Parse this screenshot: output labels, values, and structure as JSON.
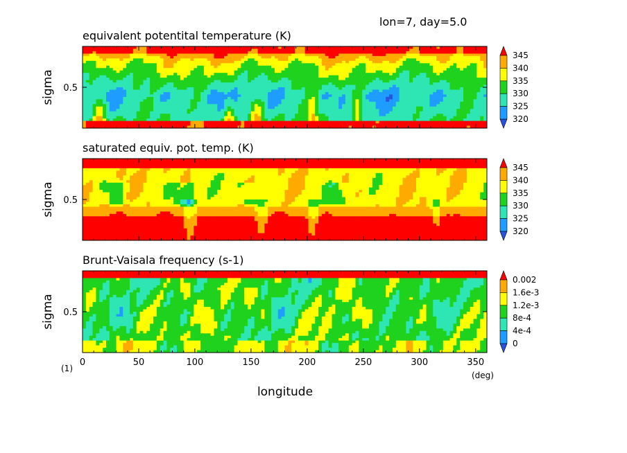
{
  "header": {
    "info": "lon=7, day=5.0"
  },
  "figure_note": "(1)",
  "x_axis": {
    "label": "longitude",
    "unit": "(deg)",
    "range": [
      0,
      360
    ],
    "ticks": [
      0,
      50,
      100,
      150,
      200,
      250,
      300,
      350
    ],
    "tick_labels": [
      "0",
      "50",
      "100",
      "150",
      "200",
      "250",
      "300",
      "350"
    ]
  },
  "chart_data": [
    {
      "type": "heatmap",
      "title": "equivalent potentital temperature (K)",
      "ylabel": "sigma",
      "ylim": [
        0,
        1
      ],
      "y_ticks": [
        0.5
      ],
      "y_tick_labels": [
        "0.5"
      ],
      "colorbar": {
        "levels": [
          "320",
          "325",
          "330",
          "335",
          "340",
          "345"
        ],
        "colors": [
          "#2a52e0",
          "#1e9cff",
          "#2ee6b4",
          "#1ed21e",
          "#ffff00",
          "#ffaa00",
          "#ff0000"
        ]
      },
      "pattern": "red/orange near surface (sigma 1.0) and top; blue-cyan minimum (320-330 K) in mid levels around sigma 0.6-0.8; warm red plumes at lon ~15, 130, 155, 205, 245"
    },
    {
      "type": "heatmap",
      "title": "saturated equiv. pot. temp. (K)",
      "ylabel": "sigma",
      "ylim": [
        0,
        1
      ],
      "y_ticks": [
        0.5
      ],
      "y_tick_labels": [
        "0.5"
      ],
      "colorbar": {
        "levels": [
          "320",
          "325",
          "330",
          "335",
          "340",
          "345"
        ],
        "colors": [
          "#2a52e0",
          "#1e9cff",
          "#2ee6b4",
          "#1ed21e",
          "#ffff00",
          "#ffaa00",
          "#ff0000"
        ]
      },
      "pattern": "red (>345 K) near top and in lower layer sigma 0.7-1.0; yellow/orange 335-340 K band mid-levels with green 330 K patches around sigma 0.3-0.5"
    },
    {
      "type": "heatmap",
      "title": "Brunt-Vaisala frequency (s-1)",
      "ylabel": "sigma",
      "ylim": [
        0,
        1
      ],
      "y_ticks": [
        0.5
      ],
      "y_tick_labels": [
        "0.5"
      ],
      "colorbar": {
        "levels": [
          "0",
          "4e-4",
          "8e-4",
          "1.2e-3",
          "1.6e-3",
          "0.002"
        ],
        "colors": [
          "#2a52e0",
          "#1e9cff",
          "#2ee6b4",
          "#1ed21e",
          "#ffff00",
          "#ffaa00",
          "#ff0000"
        ]
      },
      "pattern": "red (>0.002) at top; mixed cyan/green (4e-4 to 1.2e-3) through mid levels with yellow patches (1.2e-3 to 1.6e-3); red streaks near surface"
    }
  ]
}
